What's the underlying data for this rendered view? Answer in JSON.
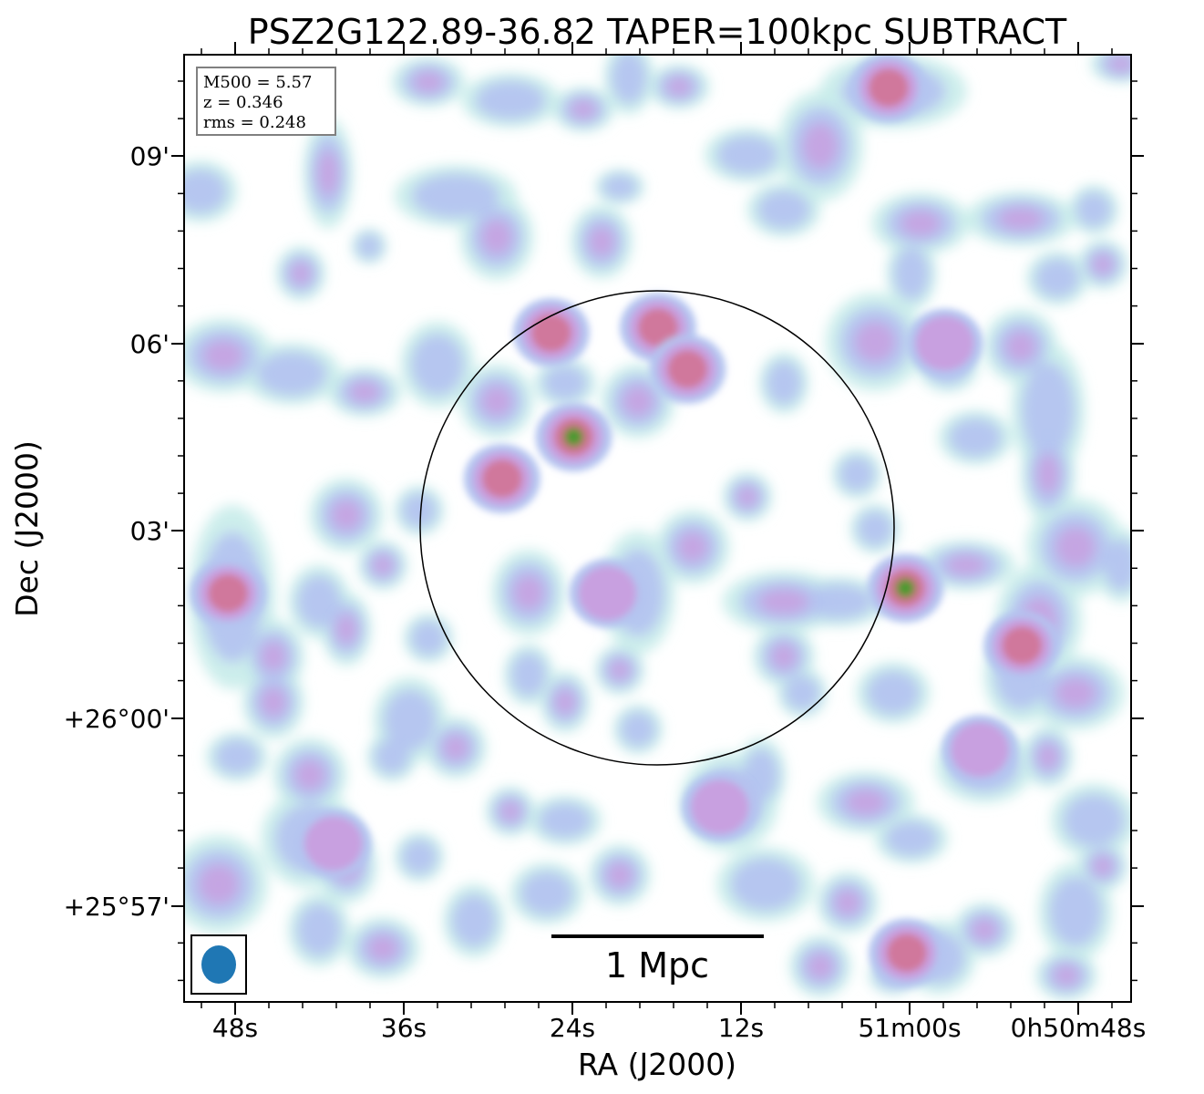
{
  "chart_data": {
    "type": "heatmap",
    "title": "PSZ2G122.89-36.82 TAPER=100kpc SUBTRACT",
    "xlabel": "RA (J2000)",
    "ylabel": "Dec (J2000)",
    "x_ticks": [
      "48s",
      "36s",
      "24s",
      "12s",
      "51m00s",
      "0h50m48s"
    ],
    "y_ticks": [
      "09'",
      "06'",
      "03'",
      "+26°00'",
      "+25°57'"
    ],
    "info_box": [
      "M500 = 5.57",
      "z = 0.346",
      "rms = 0.248"
    ],
    "scalebar_label": "1 Mpc",
    "grid": false,
    "colors": {
      "faint": "#c8ecea",
      "low": "#b4c4f0",
      "mid": "#c8a0e0",
      "high": "#d0789c",
      "peak": "#4a9a30",
      "beam": "#1f77b4",
      "circle": "#000000"
    },
    "sources": [
      {
        "ra": "00:51:23.9",
        "dec": "+26:04:30",
        "level": "peak"
      },
      {
        "ra": "00:51:17.9",
        "dec": "+26:06:15",
        "level": "high"
      },
      {
        "ra": "00:51:15.8",
        "dec": "+26:05:35",
        "level": "high"
      },
      {
        "ra": "00:51:25.5",
        "dec": "+26:06:10",
        "level": "high"
      },
      {
        "ra": "00:51:29.0",
        "dec": "+26:03:50",
        "level": "high"
      },
      {
        "ra": "00:51:00.3",
        "dec": "+26:02:05",
        "level": "peak"
      },
      {
        "ra": "00:50:52.0",
        "dec": "+26:01:10",
        "level": "high"
      },
      {
        "ra": "00:51:01.5",
        "dec": "+26:10:05",
        "level": "high"
      },
      {
        "ra": "00:51:48.5",
        "dec": "+26:02:00",
        "level": "high"
      },
      {
        "ra": "00:51:00.2",
        "dec": "+25:56:15",
        "level": "high"
      },
      {
        "ra": "00:51:21.5",
        "dec": "+26:02:00",
        "level": "mid"
      },
      {
        "ra": "00:51:13.5",
        "dec": "+25:58:35",
        "level": "mid"
      },
      {
        "ra": "00:51:41.0",
        "dec": "+25:58:00",
        "level": "mid"
      },
      {
        "ra": "00:50:57.5",
        "dec": "+26:06:00",
        "level": "mid"
      },
      {
        "ra": "00:50:55.0",
        "dec": "+25:59:30",
        "level": "mid"
      }
    ]
  }
}
